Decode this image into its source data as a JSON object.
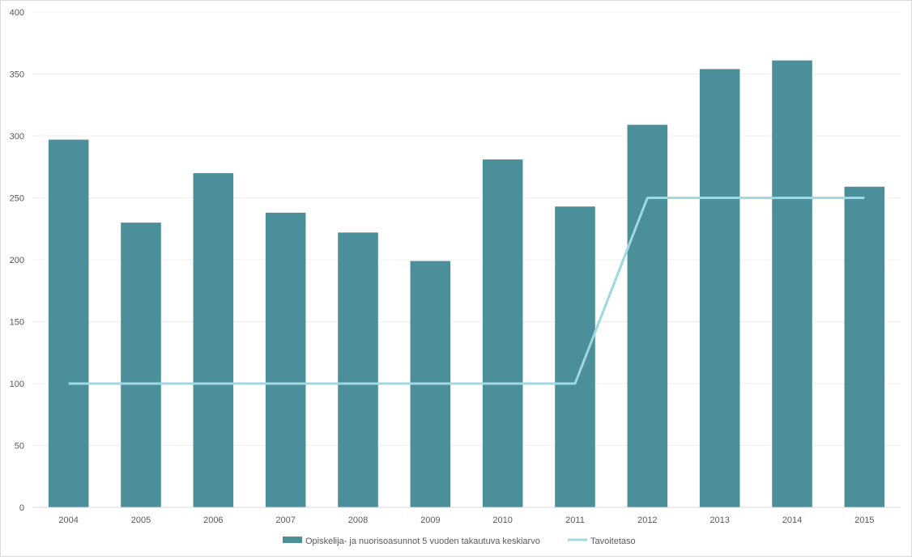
{
  "chart_data": {
    "type": "bar",
    "categories": [
      "2004",
      "2005",
      "2006",
      "2007",
      "2008",
      "2009",
      "2010",
      "2011",
      "2012",
      "2013",
      "2014",
      "2015"
    ],
    "series": [
      {
        "name": "Opiskelija- ja nuorisoasunnot 5 vuoden takautuva keskiarvo",
        "type": "bar",
        "color": "#4a8f99",
        "values": [
          297,
          230,
          270,
          238,
          222,
          199,
          281,
          243,
          309,
          354,
          361,
          259
        ]
      },
      {
        "name": "Tavoitetaso",
        "type": "line",
        "color": "#9fd8e0",
        "values": [
          100,
          100,
          100,
          100,
          100,
          100,
          100,
          100,
          250,
          250,
          250,
          250
        ]
      }
    ],
    "ylim": [
      0,
      400
    ],
    "yticks": [
      0,
      50,
      100,
      150,
      200,
      250,
      300,
      350,
      400
    ],
    "grid": true,
    "legend": "bottom"
  }
}
